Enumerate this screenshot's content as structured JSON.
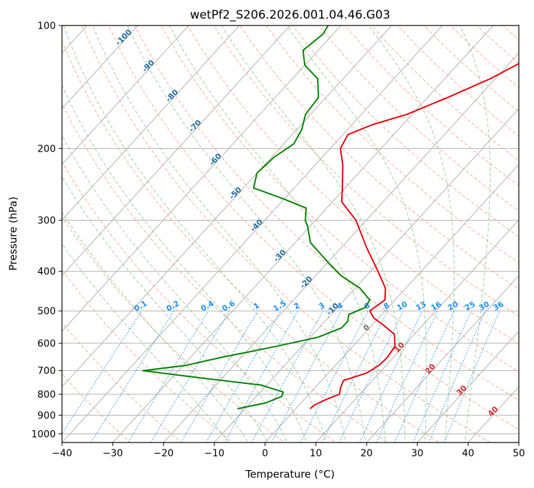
{
  "chart_data": {
    "type": "line",
    "subtype": "skew-t log-p diagram",
    "title": "wetPf2_S206.2026.001.04.46.G03",
    "xlabel": "Temperature (°C)",
    "ylabel": "Pressure (hPa)",
    "xlim": [
      -40,
      50
    ],
    "ylim": [
      1050,
      100
    ],
    "x_ticks": [
      -40,
      -30,
      -20,
      -10,
      0,
      10,
      20,
      30,
      40,
      50
    ],
    "x_tick_labels": [
      "−40",
      "−30",
      "−20",
      "−10",
      "0",
      "10",
      "20",
      "30",
      "40",
      "50"
    ],
    "y_ticks": [
      100,
      200,
      300,
      400,
      500,
      600,
      700,
      800,
      900,
      1000
    ],
    "y_tick_labels": [
      "100",
      "200",
      "300",
      "400",
      "500",
      "600",
      "700",
      "800",
      "900",
      "1000"
    ],
    "grid": true,
    "series": [
      {
        "name": "Temperature",
        "color": "#e6000a",
        "points": [
          [
            868,
            2.8
          ],
          [
            850,
            3.0
          ],
          [
            820,
            4.5
          ],
          [
            800,
            6.0
          ],
          [
            770,
            5.0
          ],
          [
            740,
            4.3
          ],
          [
            710,
            7.5
          ],
          [
            680,
            8.6
          ],
          [
            650,
            8.8
          ],
          [
            610,
            8.3
          ],
          [
            570,
            6.0
          ],
          [
            540,
            2.0
          ],
          [
            520,
            -1.0
          ],
          [
            500,
            -3.0
          ],
          [
            470,
            -2.0
          ],
          [
            440,
            -4.0
          ],
          [
            400,
            -8.5
          ],
          [
            350,
            -15.0
          ],
          [
            300,
            -22.0
          ],
          [
            270,
            -28.2
          ],
          [
            250,
            -30.5
          ],
          [
            220,
            -34.5
          ],
          [
            200,
            -38.0
          ],
          [
            185,
            -39.0
          ],
          [
            175,
            -36.0
          ],
          [
            165,
            -31.0
          ],
          [
            150,
            -26.0
          ],
          [
            135,
            -21.0
          ],
          [
            120,
            -17.0
          ],
          [
            110,
            -16.0
          ],
          [
            100,
            -17.0
          ]
        ]
      },
      {
        "name": "Dewpoint",
        "color": "#008000",
        "points": [
          [
            868,
            -11.5
          ],
          [
            840,
            -7.0
          ],
          [
            810,
            -5.0
          ],
          [
            790,
            -5.5
          ],
          [
            760,
            -11.0
          ],
          [
            730,
            -24.0
          ],
          [
            700,
            -37.0
          ],
          [
            680,
            -29.5
          ],
          [
            650,
            -24.0
          ],
          [
            630,
            -19.5
          ],
          [
            610,
            -15.0
          ],
          [
            580,
            -8.5
          ],
          [
            550,
            -5.5
          ],
          [
            530,
            -5.5
          ],
          [
            510,
            -6.5
          ],
          [
            490,
            -4.5
          ],
          [
            470,
            -5.0
          ],
          [
            440,
            -9.0
          ],
          [
            410,
            -15.0
          ],
          [
            380,
            -20.0
          ],
          [
            340,
            -27.0
          ],
          [
            310,
            -30.5
          ],
          [
            300,
            -32.0
          ],
          [
            280,
            -34.0
          ],
          [
            265,
            -40.5
          ],
          [
            250,
            -48.0
          ],
          [
            230,
            -50.0
          ],
          [
            210,
            -49.5
          ],
          [
            195,
            -48.0
          ],
          [
            180,
            -49.0
          ],
          [
            165,
            -51.0
          ],
          [
            150,
            -51.5
          ],
          [
            135,
            -55.0
          ],
          [
            125,
            -60.0
          ],
          [
            115,
            -63.0
          ],
          [
            105,
            -62.0
          ],
          [
            100,
            -62.5
          ]
        ]
      }
    ],
    "dry_adiabat_labels": [
      "-100",
      "-90",
      "-80",
      "-70",
      "-60",
      "-50",
      "-40",
      "-30",
      "-20",
      "-10",
      "0",
      "10",
      "20",
      "30",
      "40"
    ],
    "mixing_ratio_labels": [
      "0.1",
      "0.2",
      "0.4",
      "0.6",
      "1",
      "1.5",
      "2",
      "3",
      "4",
      "6",
      "8",
      "10",
      "13",
      "16",
      "20",
      "25",
      "30",
      "36"
    ],
    "mixing_ratio_values": [
      0.1,
      0.2,
      0.4,
      0.6,
      1,
      1.5,
      2,
      3,
      4,
      6,
      8,
      10,
      13,
      16,
      20,
      25,
      30,
      36
    ],
    "colors": {
      "temperature": "#e6000a",
      "dewpoint": "#008000",
      "dry_adiabat": "#f4a582",
      "moist_adiabat": "#8fc98a",
      "mixing_ratio": "#1e90ff",
      "isotherm": "#808080",
      "adiabat_label_cold": "#1f6aa5",
      "adiabat_label_warm": "#d62728"
    }
  }
}
